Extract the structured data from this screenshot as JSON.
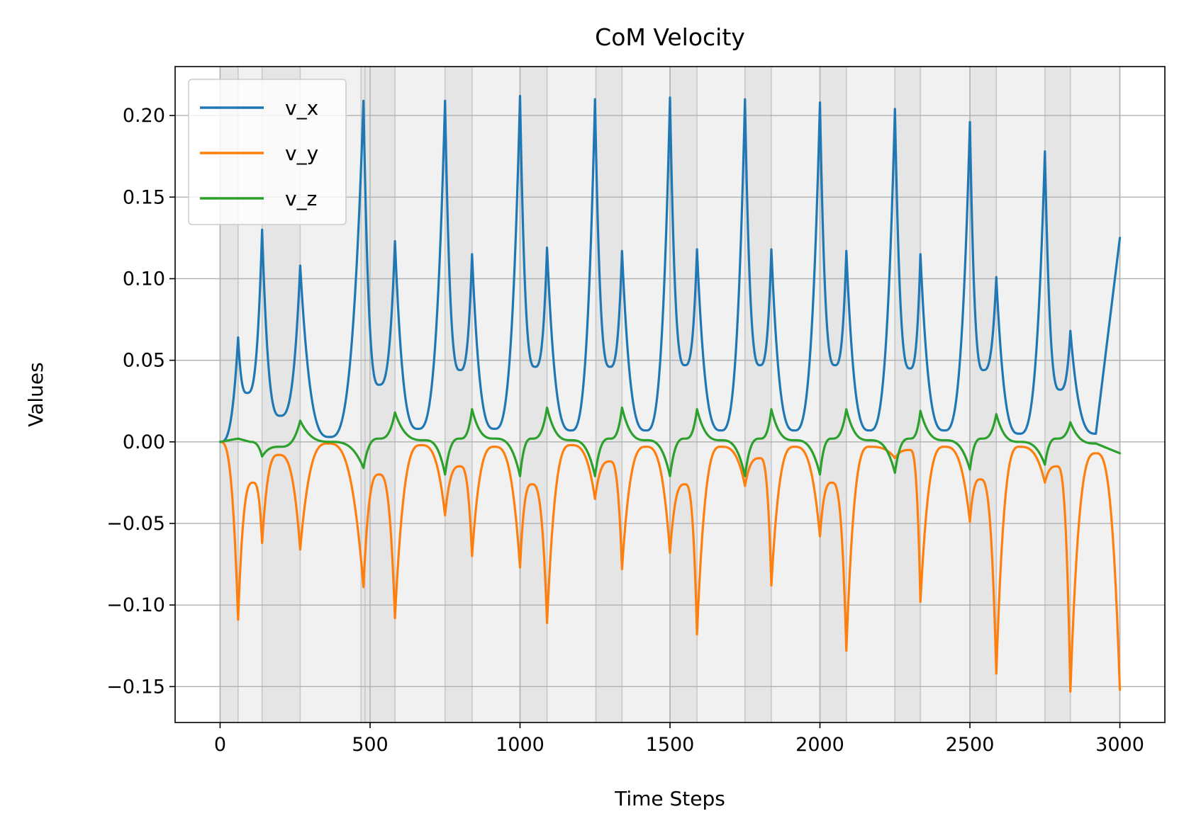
{
  "chart_data": {
    "type": "line",
    "title": "CoM Velocity",
    "xlabel": "Time Steps",
    "ylabel": "Values",
    "xlim": [
      -150,
      3150
    ],
    "ylim": [
      -0.172,
      0.23
    ],
    "xticks": [
      0,
      500,
      1000,
      1500,
      2000,
      2500,
      3000
    ],
    "xtick_labels": [
      "0",
      "500",
      "1000",
      "1500",
      "2000",
      "2500",
      "3000"
    ],
    "yticks": [
      -0.15,
      -0.1,
      -0.05,
      0.0,
      0.05,
      0.1,
      0.15,
      0.2
    ],
    "ytick_labels": [
      "−0.15",
      "−0.10",
      "−0.05",
      "0.00",
      "0.05",
      "0.10",
      "0.15",
      "0.20"
    ],
    "grid": true,
    "legend_position": "top-left",
    "shaded_phases": {
      "colors": {
        "single_support": "#e5e5e5",
        "double_support": "#f1f1f1"
      },
      "boundaries": [
        0,
        60,
        140,
        267,
        470,
        483,
        583,
        750,
        840,
        1000,
        1090,
        1253,
        1340,
        1500,
        1590,
        1750,
        1838,
        2000,
        2088,
        2250,
        2335,
        2500,
        2588,
        2750,
        2835,
        3000
      ],
      "types": [
        "single_support",
        "double_support",
        "single_support",
        "double_support",
        "single_support",
        "single_support",
        "double_support",
        "single_support",
        "double_support",
        "single_support",
        "double_support",
        "single_support",
        "double_support",
        "single_support",
        "double_support",
        "single_support",
        "double_support",
        "single_support",
        "double_support",
        "single_support",
        "double_support",
        "single_support",
        "double_support",
        "single_support",
        "double_support"
      ]
    },
    "series": [
      {
        "name": "v_x",
        "color": "#1f77b4",
        "points": [
          [
            0,
            0
          ],
          [
            60,
            0.064
          ],
          [
            90,
            0.03
          ],
          [
            140,
            0.13
          ],
          [
            200,
            0.016
          ],
          [
            267,
            0.108
          ],
          [
            365,
            0.003
          ],
          [
            478,
            0.209
          ],
          [
            530,
            0.035
          ],
          [
            583,
            0.123
          ],
          [
            660,
            0.008
          ],
          [
            750,
            0.209
          ],
          [
            800,
            0.044
          ],
          [
            840,
            0.115
          ],
          [
            915,
            0.008
          ],
          [
            1000,
            0.212
          ],
          [
            1050,
            0.046
          ],
          [
            1090,
            0.119
          ],
          [
            1170,
            0.007
          ],
          [
            1250,
            0.21
          ],
          [
            1300,
            0.046
          ],
          [
            1340,
            0.117
          ],
          [
            1420,
            0.007
          ],
          [
            1500,
            0.211
          ],
          [
            1550,
            0.047
          ],
          [
            1590,
            0.118
          ],
          [
            1670,
            0.007
          ],
          [
            1750,
            0.21
          ],
          [
            1800,
            0.047
          ],
          [
            1838,
            0.118
          ],
          [
            1915,
            0.007
          ],
          [
            2000,
            0.208
          ],
          [
            2050,
            0.047
          ],
          [
            2088,
            0.117
          ],
          [
            2165,
            0.007
          ],
          [
            2250,
            0.204
          ],
          [
            2300,
            0.045
          ],
          [
            2335,
            0.115
          ],
          [
            2415,
            0.007
          ],
          [
            2500,
            0.196
          ],
          [
            2545,
            0.044
          ],
          [
            2588,
            0.101
          ],
          [
            2665,
            0.005
          ],
          [
            2750,
            0.178
          ],
          [
            2800,
            0.032
          ],
          [
            2835,
            0.068
          ],
          [
            2920,
            0.005
          ],
          [
            3000,
            0.125
          ]
        ],
        "peaks": [
          60,
          140,
          267,
          478,
          583,
          750,
          840,
          1000,
          1090,
          1250,
          1340,
          1500,
          1590,
          1750,
          1838,
          2000,
          2088,
          2250,
          2335,
          2500,
          2588,
          2750,
          2835
        ]
      },
      {
        "name": "v_y",
        "color": "#ff7f0e",
        "points": [
          [
            0,
            0
          ],
          [
            60,
            -0.109
          ],
          [
            110,
            -0.025
          ],
          [
            140,
            -0.062
          ],
          [
            195,
            -0.008
          ],
          [
            267,
            -0.066
          ],
          [
            360,
            -0.001
          ],
          [
            478,
            -0.089
          ],
          [
            530,
            -0.02
          ],
          [
            583,
            -0.108
          ],
          [
            670,
            -0.002
          ],
          [
            750,
            -0.045
          ],
          [
            800,
            -0.015
          ],
          [
            840,
            -0.07
          ],
          [
            915,
            -0.003
          ],
          [
            1000,
            -0.077
          ],
          [
            1040,
            -0.026
          ],
          [
            1090,
            -0.111
          ],
          [
            1170,
            -0.002
          ],
          [
            1250,
            -0.035
          ],
          [
            1300,
            -0.012
          ],
          [
            1340,
            -0.078
          ],
          [
            1420,
            -0.003
          ],
          [
            1500,
            -0.068
          ],
          [
            1550,
            -0.026
          ],
          [
            1590,
            -0.118
          ],
          [
            1670,
            -0.003
          ],
          [
            1750,
            -0.027
          ],
          [
            1800,
            -0.01
          ],
          [
            1838,
            -0.088
          ],
          [
            1915,
            -0.003
          ],
          [
            2000,
            -0.058
          ],
          [
            2040,
            -0.025
          ],
          [
            2088,
            -0.128
          ],
          [
            2165,
            -0.003
          ],
          [
            2250,
            -0.01
          ],
          [
            2300,
            -0.005
          ],
          [
            2335,
            -0.098
          ],
          [
            2415,
            -0.003
          ],
          [
            2500,
            -0.049
          ],
          [
            2535,
            -0.023
          ],
          [
            2588,
            -0.142
          ],
          [
            2665,
            -0.003
          ],
          [
            2750,
            -0.025
          ],
          [
            2790,
            -0.015
          ],
          [
            2835,
            -0.153
          ],
          [
            2920,
            -0.007
          ],
          [
            3000,
            -0.152
          ]
        ],
        "peaks": [
          60,
          140,
          267,
          478,
          583,
          750,
          840,
          1000,
          1090,
          1250,
          1340,
          1500,
          1590,
          1750,
          1838,
          2000,
          2088,
          2250,
          2335,
          2500,
          2588,
          2750,
          2835,
          3000
        ]
      },
      {
        "name": "v_z",
        "color": "#2ca02c",
        "points": [
          [
            0,
            0
          ],
          [
            60,
            0.002
          ],
          [
            100,
            0
          ],
          [
            140,
            -0.009
          ],
          [
            200,
            -0.003
          ],
          [
            267,
            0.013
          ],
          [
            370,
            0
          ],
          [
            478,
            -0.016
          ],
          [
            530,
            0.002
          ],
          [
            583,
            0.018
          ],
          [
            680,
            0.001
          ],
          [
            750,
            -0.02
          ],
          [
            800,
            0.002
          ],
          [
            840,
            0.02
          ],
          [
            915,
            0.002
          ],
          [
            1000,
            -0.021
          ],
          [
            1040,
            0.002
          ],
          [
            1090,
            0.021
          ],
          [
            1170,
            0.001
          ],
          [
            1250,
            -0.021
          ],
          [
            1300,
            0.002
          ],
          [
            1340,
            0.021
          ],
          [
            1420,
            0.001
          ],
          [
            1500,
            -0.021
          ],
          [
            1550,
            0.002
          ],
          [
            1590,
            0.02
          ],
          [
            1670,
            0.001
          ],
          [
            1750,
            -0.021
          ],
          [
            1800,
            0.002
          ],
          [
            1838,
            0.02
          ],
          [
            1915,
            0.001
          ],
          [
            2000,
            -0.02
          ],
          [
            2040,
            0.002
          ],
          [
            2088,
            0.02
          ],
          [
            2165,
            0.001
          ],
          [
            2250,
            -0.019
          ],
          [
            2300,
            0.002
          ],
          [
            2335,
            0.019
          ],
          [
            2415,
            0.001
          ],
          [
            2500,
            -0.017
          ],
          [
            2540,
            0.002
          ],
          [
            2588,
            0.017
          ],
          [
            2665,
            0
          ],
          [
            2750,
            -0.014
          ],
          [
            2790,
            0.002
          ],
          [
            2835,
            0.012
          ],
          [
            2920,
            -0.001
          ],
          [
            3000,
            -0.007
          ]
        ],
        "peaks": [
          140,
          267,
          478,
          583,
          750,
          840,
          1000,
          1090,
          1250,
          1340,
          1500,
          1590,
          1750,
          1838,
          2000,
          2088,
          2250,
          2335,
          2500,
          2588,
          2750,
          2835
        ]
      }
    ]
  }
}
